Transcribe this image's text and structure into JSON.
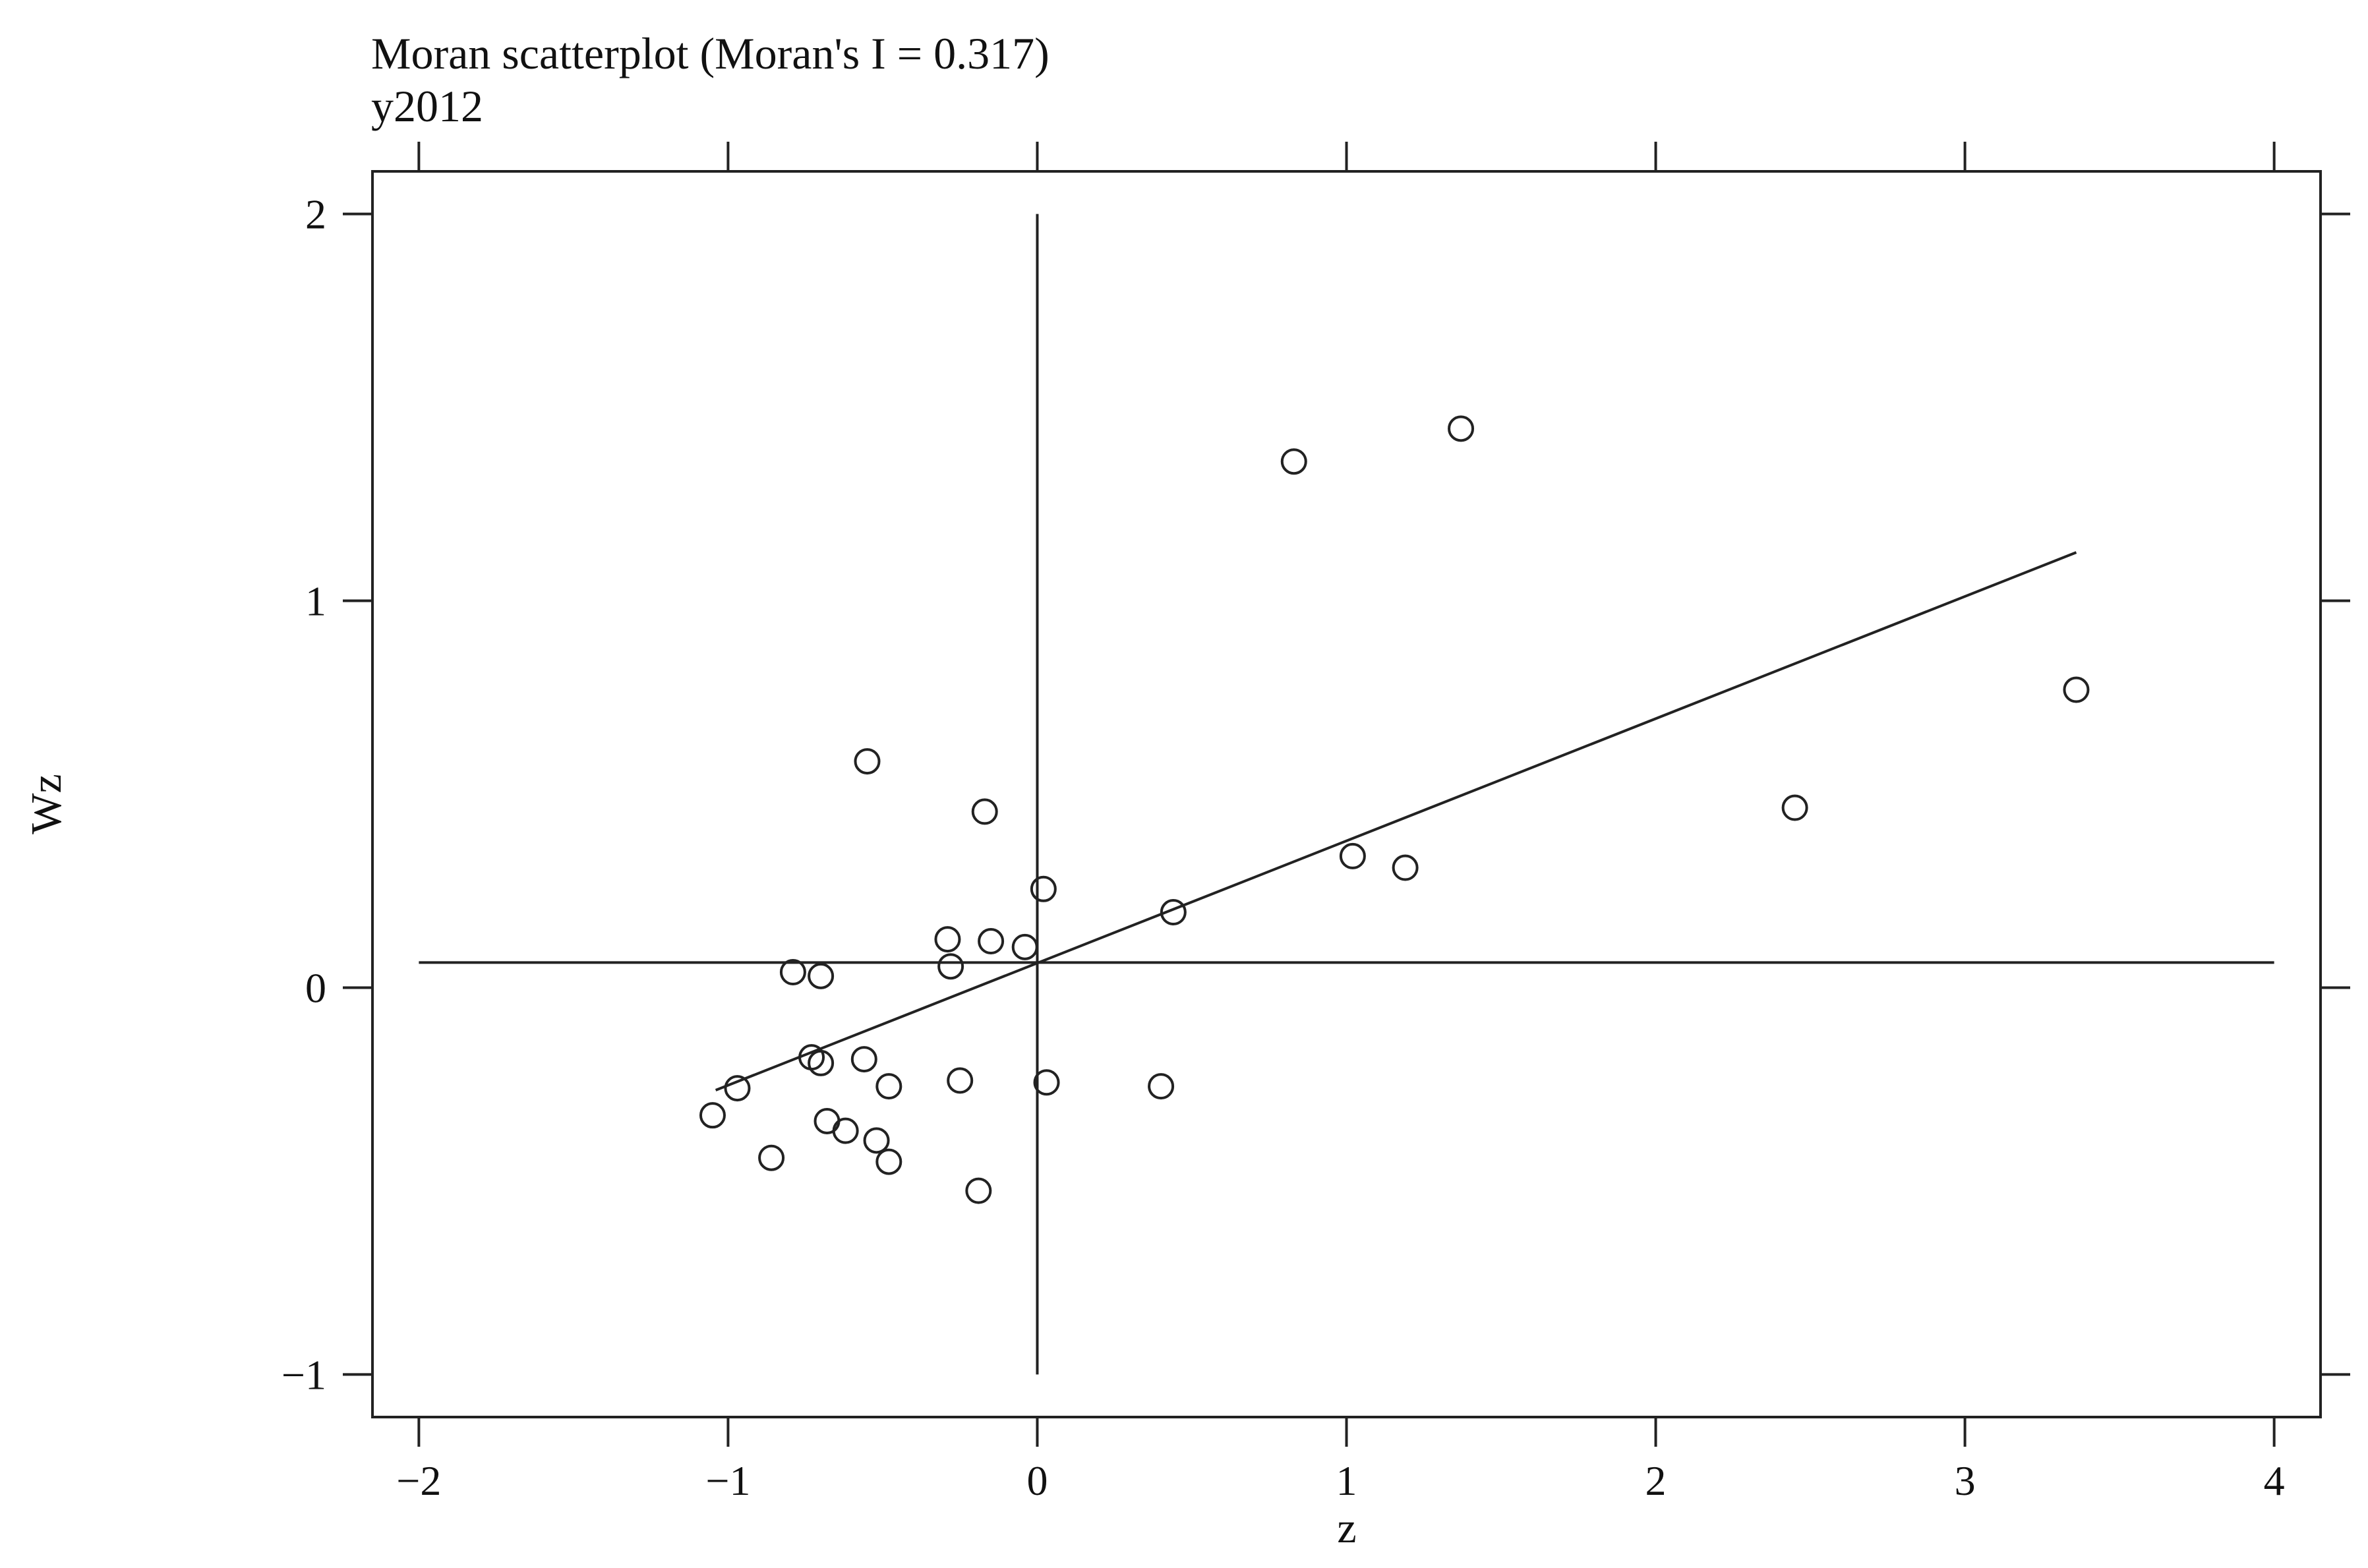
{
  "chart_data": {
    "type": "scatter",
    "title": "Moran scatterplot (Moran's I = 0.317)",
    "subtitle": "y2012",
    "xlabel": "z",
    "ylabel": "Wz",
    "xlim": [
      -2.15,
      4.15
    ],
    "ylim": [
      -1.11,
      2.11
    ],
    "xticks": [
      -2,
      -1,
      0,
      1,
      2,
      3,
      4
    ],
    "yticks": [
      -1,
      0,
      1,
      2
    ],
    "xtick_labels": [
      "−2",
      "−1",
      "0",
      "1",
      "2",
      "3",
      "4"
    ],
    "ytick_labels": [
      "−1",
      "0",
      "1",
      "2"
    ],
    "reference_lines": {
      "vertical_x": 0,
      "vertical_range": [
        -1,
        2
      ],
      "horizontal_y": 0.065,
      "horizontal_range": [
        -2,
        4
      ]
    },
    "fit_line": {
      "x": [
        -1.04,
        3.36
      ],
      "y": [
        -0.265,
        1.125
      ]
    },
    "points": {
      "x": [
        1.37,
        0.83,
        3.36,
        2.45,
        -0.55,
        -0.17,
        1.02,
        1.19,
        0.02,
        0.44,
        -0.29,
        -0.15,
        -0.04,
        -0.28,
        -0.79,
        -0.7,
        -0.73,
        -0.7,
        -0.56,
        -0.48,
        -0.25,
        0.03,
        0.4,
        -0.97,
        -1.05,
        -0.68,
        -0.62,
        -0.52,
        -0.86,
        -0.48,
        -0.19
      ],
      "y": [
        1.445,
        1.36,
        0.77,
        0.465,
        0.585,
        0.455,
        0.34,
        0.31,
        0.255,
        0.195,
        0.125,
        0.12,
        0.105,
        0.055,
        0.04,
        0.03,
        -0.18,
        -0.195,
        -0.185,
        -0.255,
        -0.24,
        -0.245,
        -0.255,
        -0.26,
        -0.33,
        -0.345,
        -0.37,
        -0.395,
        -0.44,
        -0.45,
        -0.525
      ]
    }
  }
}
